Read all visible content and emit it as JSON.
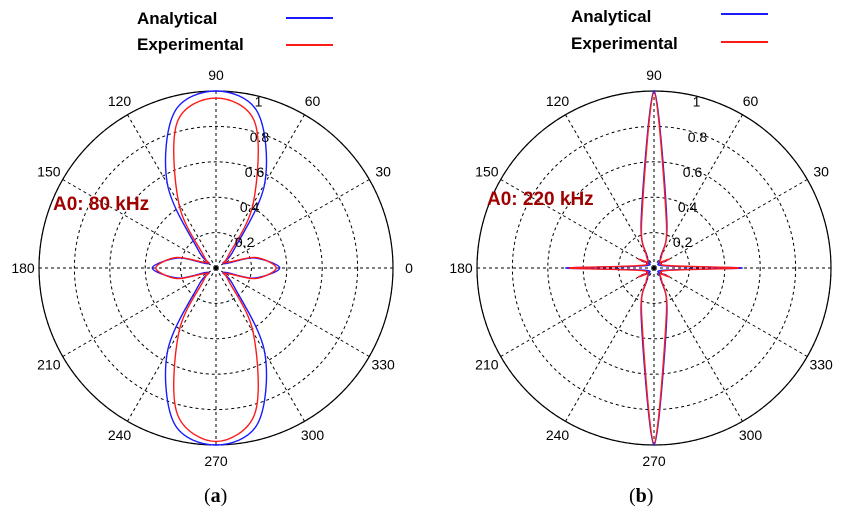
{
  "colors": {
    "analytical": "#1a1aff",
    "experimental": "#ff1a1a",
    "annotation": "#a00000"
  },
  "legend": {
    "analytical_label": "Analytical",
    "experimental_label": "Experimental"
  },
  "angle_labels": [
    "0",
    "30",
    "60",
    "90",
    "120",
    "150",
    "180",
    "210",
    "240",
    "270",
    "300",
    "330"
  ],
  "radial_labels": [
    "1",
    "0.8",
    "0.6",
    "0.4",
    "0.2"
  ],
  "panels": [
    {
      "caption_open": "(",
      "caption_letter": "a",
      "caption_close": ")",
      "annotation": "A0: 80 kHz"
    },
    {
      "caption_open": "(",
      "caption_letter": "b",
      "caption_close": ")",
      "annotation": "A0: 220 kHz"
    }
  ],
  "chart_data": [
    {
      "type": "polar",
      "title": "",
      "angle_unit": "degrees",
      "r_range": [
        0,
        1
      ],
      "r_ticks": [
        0.2,
        0.4,
        0.6,
        0.8,
        1
      ],
      "theta_ticks": [
        0,
        30,
        60,
        90,
        120,
        150,
        180,
        210,
        240,
        270,
        300,
        330
      ],
      "grid": true,
      "legend_position": "top",
      "annotation": "A0: 80 kHz",
      "theta": [
        0,
        15,
        30,
        45,
        60,
        75,
        90,
        105,
        120,
        135,
        150,
        165,
        180,
        195,
        210,
        225,
        240,
        255,
        270,
        285,
        300,
        315,
        330,
        345
      ],
      "series": [
        {
          "name": "Analytical",
          "r": [
            0.36,
            0.22,
            0.05,
            0.14,
            0.55,
            0.91,
            1.0,
            0.91,
            0.55,
            0.14,
            0.05,
            0.22,
            0.36,
            0.22,
            0.05,
            0.14,
            0.55,
            0.91,
            1.0,
            0.91,
            0.55,
            0.14,
            0.05,
            0.22
          ]
        },
        {
          "name": "Experimental",
          "r": [
            0.34,
            0.23,
            0.06,
            0.1,
            0.42,
            0.85,
            0.96,
            0.85,
            0.42,
            0.1,
            0.06,
            0.23,
            0.34,
            0.23,
            0.06,
            0.1,
            0.42,
            0.85,
            0.98,
            0.85,
            0.42,
            0.1,
            0.06,
            0.23
          ]
        }
      ]
    },
    {
      "type": "polar",
      "title": "",
      "angle_unit": "degrees",
      "r_range": [
        0,
        1
      ],
      "r_ticks": [
        0.2,
        0.4,
        0.6,
        0.8,
        1
      ],
      "theta_ticks": [
        0,
        30,
        60,
        90,
        120,
        150,
        180,
        210,
        240,
        270,
        300,
        330
      ],
      "grid": true,
      "legend_position": "top",
      "annotation": "A0: 220 kHz",
      "theta": [
        0,
        15,
        30,
        45,
        60,
        75,
        90,
        105,
        120,
        135,
        150,
        165,
        180,
        195,
        210,
        225,
        240,
        255,
        270,
        285,
        300,
        315,
        330,
        345
      ],
      "series": [
        {
          "name": "Analytical",
          "r": [
            0.5,
            0.05,
            0.08,
            0.04,
            0.08,
            0.28,
            1.0,
            0.28,
            0.08,
            0.04,
            0.08,
            0.05,
            0.5,
            0.05,
            0.08,
            0.04,
            0.08,
            0.28,
            1.0,
            0.28,
            0.08,
            0.04,
            0.08,
            0.05
          ]
        },
        {
          "name": "Experimental",
          "r": [
            0.48,
            0.06,
            0.1,
            0.05,
            0.09,
            0.27,
            0.99,
            0.27,
            0.09,
            0.05,
            0.1,
            0.06,
            0.48,
            0.06,
            0.1,
            0.05,
            0.09,
            0.27,
            0.99,
            0.27,
            0.09,
            0.05,
            0.1,
            0.06
          ]
        }
      ]
    }
  ]
}
